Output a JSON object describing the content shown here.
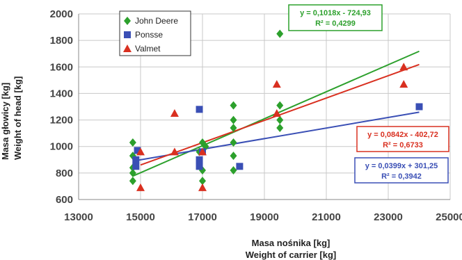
{
  "chart_data": {
    "type": "scatter",
    "xlabel_lines": [
      "Masa nośnika [kg]",
      "Weight of carrier [kg]"
    ],
    "ylabel_lines": [
      "Masa głowicy [kg]",
      "Weight of head [kg]"
    ],
    "xlim": [
      13000,
      25000
    ],
    "ylim": [
      600,
      2000
    ],
    "x_ticks": [
      "13000",
      "15000",
      "17000",
      "19000",
      "21000",
      "23000",
      "25000"
    ],
    "y_ticks": [
      "600",
      "800",
      "1000",
      "1200",
      "1400",
      "1600",
      "1800",
      "2000"
    ],
    "grid": true,
    "legend_position": "top-left",
    "series": [
      {
        "name": "John Deere",
        "marker": "diamond",
        "color": "#2ca02c",
        "points": [
          [
            14750,
            740
          ],
          [
            14750,
            800
          ],
          [
            14750,
            840
          ],
          [
            14750,
            930
          ],
          [
            14750,
            1030
          ],
          [
            16900,
            960
          ],
          [
            17000,
            740
          ],
          [
            17000,
            820
          ],
          [
            17000,
            1030
          ],
          [
            17100,
            1000
          ],
          [
            18000,
            820
          ],
          [
            18000,
            930
          ],
          [
            18000,
            1030
          ],
          [
            18000,
            1140
          ],
          [
            18000,
            1200
          ],
          [
            18000,
            1310
          ],
          [
            19500,
            1140
          ],
          [
            19500,
            1200
          ],
          [
            19500,
            1310
          ],
          [
            19500,
            1850
          ]
        ],
        "trendline": {
          "slope": 0.1018,
          "intercept": -724.93,
          "x_range": [
            14750,
            24000
          ]
        },
        "equation": "y = 0,1018x - 724,93",
        "r2": "R² = 0,4299"
      },
      {
        "name": "Ponsse",
        "marker": "square",
        "color": "#3a4fb5",
        "points": [
          [
            14850,
            850
          ],
          [
            14850,
            900
          ],
          [
            14900,
            970
          ],
          [
            16900,
            850
          ],
          [
            16900,
            900
          ],
          [
            16900,
            1280
          ],
          [
            17000,
            960
          ],
          [
            18200,
            850
          ],
          [
            24000,
            1300
          ]
        ],
        "trendline": {
          "slope": 0.0399,
          "intercept": 301.25,
          "x_range": [
            14850,
            24000
          ]
        },
        "equation": "y = 0,0399x + 301,25",
        "r2": "R² = 0,3942"
      },
      {
        "name": "Valmet",
        "marker": "triangle",
        "color": "#d93020",
        "points": [
          [
            15000,
            690
          ],
          [
            15000,
            960
          ],
          [
            16100,
            960
          ],
          [
            16100,
            1250
          ],
          [
            17000,
            690
          ],
          [
            17000,
            960
          ],
          [
            19400,
            1250
          ],
          [
            19400,
            1470
          ],
          [
            23500,
            1470
          ],
          [
            23500,
            1600
          ]
        ],
        "trendline": {
          "slope": 0.0842,
          "intercept": -402.72,
          "x_range": [
            15000,
            24000
          ]
        },
        "equation": "y = 0,0842x - 402,72",
        "r2": "R² = 0,6733"
      }
    ]
  }
}
